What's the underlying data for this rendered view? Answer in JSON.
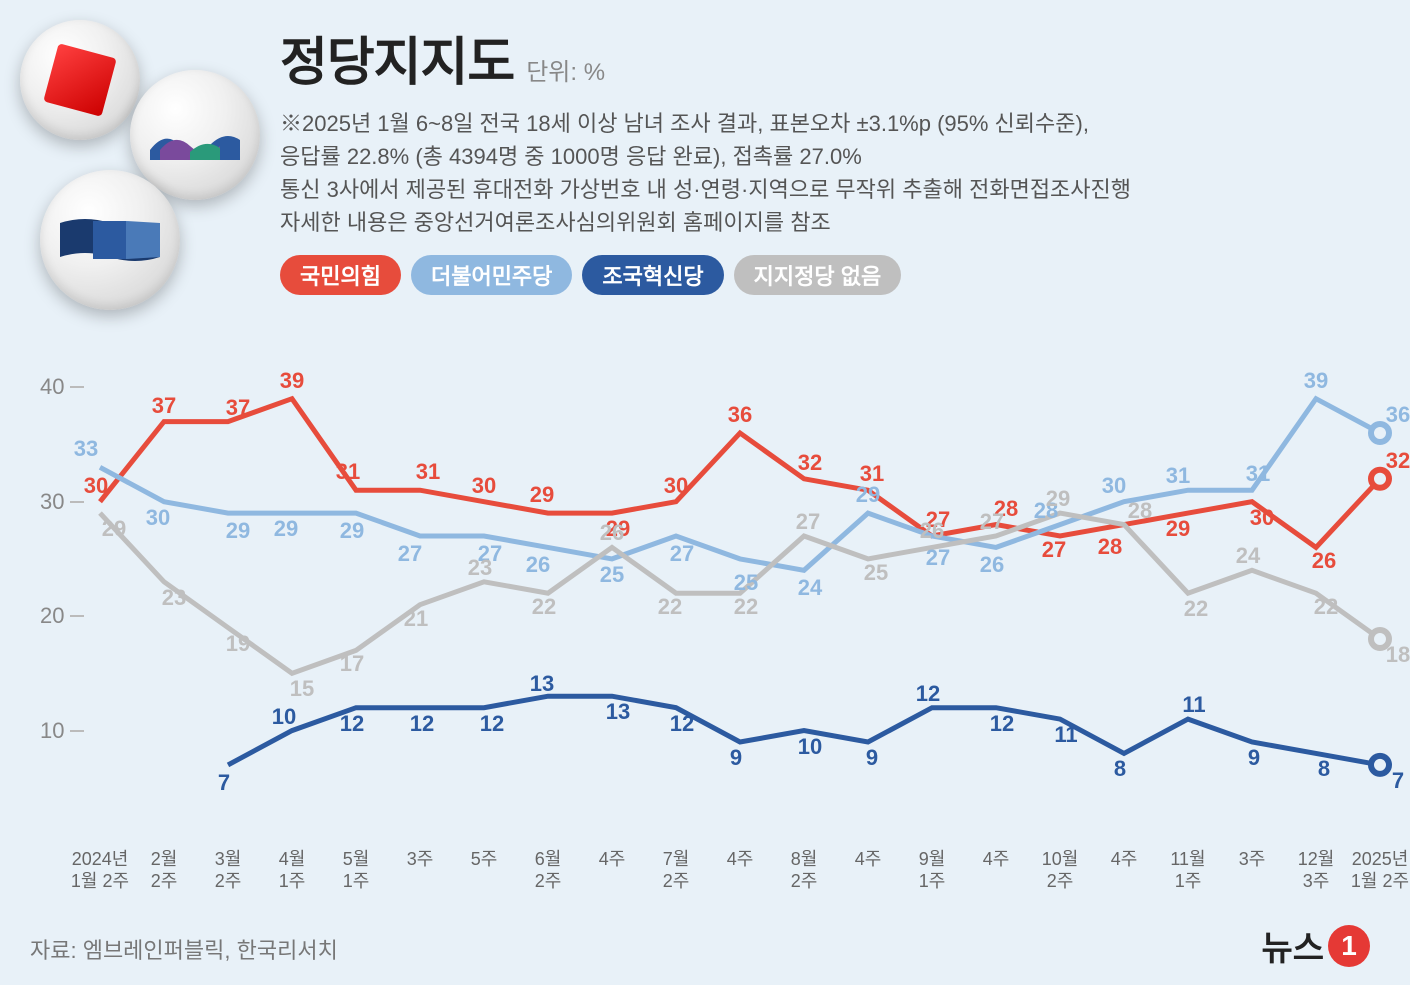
{
  "title": "정당지지도",
  "unit": "단위: %",
  "description": [
    "※2025년 1월 6~8일 전국 18세 이상 남녀 조사 결과, 표본오차 ±3.1%p (95% 신뢰수준),",
    "    응답률 22.8% (총 4394명 중 1000명 응답 완료), 접촉률 27.0%",
    "    통신 3사에서 제공된 휴대전화 가상번호 내 성·연령·지역으로 무작위 추출해 전화면접조사진행",
    "    자세한 내용은 중앙선거여론조사심의위원회 홈페이지를 참조"
  ],
  "legend": [
    {
      "name": "국민의힘",
      "color": "#e74c3c"
    },
    {
      "name": "더불어민주당",
      "color": "#8fb8e0"
    },
    {
      "name": "조국혁신당",
      "color": "#2c5aa0"
    },
    {
      "name": "지지정당 없음",
      "color": "#bfbfbf"
    }
  ],
  "chart": {
    "type": "line",
    "y": {
      "min": 0,
      "max": 45,
      "ticks": [
        10,
        20,
        30,
        40
      ],
      "fontsize": 22,
      "color": "#888"
    },
    "x_labels": [
      "2024년\n1월 2주",
      "2월\n2주",
      "3월\n2주",
      "4월\n1주",
      "5월\n1주",
      "3주",
      "5주",
      "6월\n2주",
      "4주",
      "7월\n2주",
      "4주",
      "8월\n2주",
      "4주",
      "9월\n1주",
      "4주",
      "10월\n2주",
      "4주",
      "11월\n1주",
      "3주",
      "12월\n3주",
      "2025년\n1월 2주"
    ],
    "background_color": "#e8f1f8",
    "line_width": 5,
    "label_fontsize": 22,
    "end_marker": {
      "radius": 9,
      "stroke_width": 6
    },
    "series": [
      {
        "key": "ppp",
        "color": "#e74c3c",
        "values": [
          30,
          37,
          37,
          39,
          31,
          31,
          30,
          29,
          29,
          30,
          36,
          32,
          31,
          27,
          28,
          27,
          28,
          29,
          30,
          26,
          32
        ],
        "label_offsets": [
          [
            -4,
            -16
          ],
          [
            0,
            -16
          ],
          [
            10,
            -14
          ],
          [
            0,
            -18
          ],
          [
            -8,
            -18
          ],
          [
            8,
            -18
          ],
          [
            0,
            -16
          ],
          [
            -6,
            -18
          ],
          [
            6,
            16
          ],
          [
            0,
            -16
          ],
          [
            0,
            -18
          ],
          [
            6,
            -16
          ],
          [
            4,
            -16
          ],
          [
            6,
            -16
          ],
          [
            10,
            -16
          ],
          [
            -6,
            14
          ],
          [
            -14,
            22
          ],
          [
            -10,
            16
          ],
          [
            10,
            16
          ],
          [
            8,
            14
          ],
          [
            18,
            -18
          ]
        ]
      },
      {
        "key": "dpk",
        "color": "#8fb8e0",
        "values": [
          33,
          30,
          29,
          29,
          29,
          27,
          27,
          26,
          25,
          27,
          25,
          24,
          29,
          27,
          26,
          28,
          30,
          31,
          31,
          39,
          36
        ],
        "label_offsets": [
          [
            -14,
            -18
          ],
          [
            -6,
            16
          ],
          [
            10,
            18
          ],
          [
            -6,
            16
          ],
          [
            -4,
            18
          ],
          [
            -10,
            18
          ],
          [
            6,
            18
          ],
          [
            -10,
            18
          ],
          [
            0,
            16
          ],
          [
            6,
            18
          ],
          [
            6,
            24
          ],
          [
            6,
            18
          ],
          [
            0,
            -18
          ],
          [
            6,
            22
          ],
          [
            -4,
            18
          ],
          [
            -14,
            -14
          ],
          [
            -10,
            -16
          ],
          [
            -10,
            -14
          ],
          [
            6,
            -16
          ],
          [
            0,
            -18
          ],
          [
            18,
            -18
          ]
        ]
      },
      {
        "key": "rkp",
        "color": "#2c5aa0",
        "values": [
          null,
          null,
          7,
          10,
          12,
          12,
          12,
          13,
          13,
          12,
          9,
          10,
          9,
          12,
          12,
          11,
          8,
          11,
          9,
          8,
          7
        ],
        "label_offsets": [
          null,
          null,
          [
            -4,
            18
          ],
          [
            -8,
            -14
          ],
          [
            -4,
            16
          ],
          [
            2,
            16
          ],
          [
            8,
            16
          ],
          [
            -6,
            -12
          ],
          [
            6,
            16
          ],
          [
            6,
            16
          ],
          [
            -4,
            16
          ],
          [
            6,
            16
          ],
          [
            4,
            16
          ],
          [
            -4,
            -14
          ],
          [
            6,
            16
          ],
          [
            6,
            16
          ],
          [
            -4,
            16
          ],
          [
            6,
            -14
          ],
          [
            2,
            16
          ],
          [
            8,
            16
          ],
          [
            18,
            16
          ]
        ]
      },
      {
        "key": "none",
        "color": "#bfbfbf",
        "values": [
          29,
          23,
          19,
          15,
          17,
          21,
          23,
          22,
          26,
          22,
          22,
          27,
          25,
          26,
          27,
          29,
          28,
          22,
          24,
          22,
          18
        ],
        "label_offsets": [
          [
            14,
            16
          ],
          [
            10,
            16
          ],
          [
            10,
            16
          ],
          [
            10,
            16
          ],
          [
            -4,
            14
          ],
          [
            -4,
            14
          ],
          [
            -4,
            -14
          ],
          [
            -4,
            14
          ],
          [
            0,
            -14
          ],
          [
            -6,
            14
          ],
          [
            6,
            14
          ],
          [
            4,
            -14
          ],
          [
            8,
            14
          ],
          [
            0,
            -16
          ],
          [
            -4,
            -14
          ],
          [
            -2,
            -14
          ],
          [
            16,
            -14
          ],
          [
            8,
            16
          ],
          [
            -4,
            -14
          ],
          [
            10,
            14
          ],
          [
            18,
            16
          ]
        ]
      }
    ]
  },
  "footer": "자료: 엠브레인퍼블릭, 한국리서치",
  "logo": {
    "text": "뉴스",
    "num": "1",
    "circle_color": "#e53935"
  }
}
